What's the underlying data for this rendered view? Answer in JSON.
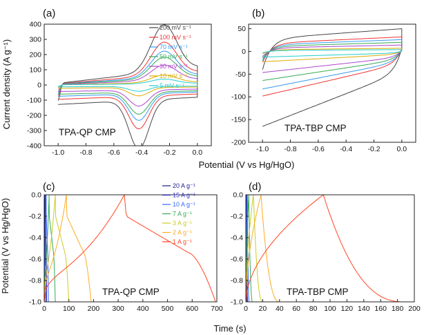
{
  "figure": {
    "shared_xlabel_top": "Potential (V vs Hg/HgO)",
    "shared_ylabel_bottom": "Potential (V vs Hg/HgO)",
    "shared_xlabel_bottom": "Time (s)"
  },
  "chart_data": [
    {
      "panel": "(a)",
      "type": "line",
      "title": "TPA-QP CMP",
      "ylabel": "Current density (A g⁻¹)",
      "xlabel": "",
      "xlim": [
        -1.1,
        0.1
      ],
      "ylim": [
        -400,
        400
      ],
      "xticks": [
        -1.0,
        -0.8,
        -0.6,
        -0.4,
        -0.2,
        0.0
      ],
      "xtick_labels": [
        "-1.0",
        "-0.8",
        "-0.6",
        "-0.4",
        "-0.2",
        "0.0"
      ],
      "yticks": [
        -400,
        -300,
        -200,
        -100,
        0,
        100,
        200,
        300,
        400
      ],
      "legend_position": "right",
      "shape": "cv_redox",
      "series": [
        {
          "name": "200 mV s⁻¹",
          "color": "#444444",
          "peak_anodic": 305,
          "peak_cathodic": -320,
          "base": 95
        },
        {
          "name": "100 mV s⁻¹",
          "color": "#ee3333",
          "peak_anodic": 215,
          "peak_cathodic": -215,
          "base": 70
        },
        {
          "name": "70 mV s⁻¹",
          "color": "#3399ee",
          "peak_anodic": 170,
          "peak_cathodic": -175,
          "base": 55
        },
        {
          "name": "50 mV s⁻¹",
          "color": "#33aa55",
          "peak_anodic": 140,
          "peak_cathodic": -145,
          "base": 45
        },
        {
          "name": "30 mV s⁻¹",
          "color": "#aa44cc",
          "peak_anodic": 100,
          "peak_cathodic": -105,
          "base": 32
        },
        {
          "name": "10 mV s⁻¹",
          "color": "#ddaa00",
          "peak_anodic": 50,
          "peak_cathodic": -55,
          "base": 16
        },
        {
          "name": "5 mV s⁻¹",
          "color": "#22cccc",
          "peak_anodic": 30,
          "peak_cathodic": -32,
          "base": 9
        }
      ]
    },
    {
      "panel": "(b)",
      "type": "line",
      "title": "TPA-TBP CMP",
      "ylabel": "",
      "xlabel": "",
      "xlim": [
        -1.1,
        0.1
      ],
      "ylim": [
        -200,
        60
      ],
      "xticks": [
        -1.0,
        -0.8,
        -0.6,
        -0.4,
        -0.2,
        0.0
      ],
      "xtick_labels": [
        "-1.0",
        "-0.8",
        "-0.6",
        "-0.4",
        "-0.2",
        "0.0"
      ],
      "yticks": [
        -200,
        -150,
        -100,
        -50,
        0,
        50
      ],
      "shape": "cv_capacitive",
      "series": [
        {
          "name": "200 mV s⁻¹",
          "color": "#444444",
          "top": 50,
          "bottom": -160
        },
        {
          "name": "100 mV s⁻¹",
          "color": "#ee3333",
          "top": 32,
          "bottom": -95
        },
        {
          "name": "70 mV s⁻¹",
          "color": "#3399ee",
          "top": 26,
          "bottom": -80
        },
        {
          "name": "50 mV s⁻¹",
          "color": "#33aa55",
          "top": 20,
          "bottom": -62
        },
        {
          "name": "30 mV s⁻¹",
          "color": "#aa44cc",
          "top": 14,
          "bottom": -45
        },
        {
          "name": "10 mV s⁻¹",
          "color": "#ddaa00",
          "top": 7,
          "bottom": -22
        },
        {
          "name": "5 mV s⁻¹",
          "color": "#22cccc",
          "top": 4,
          "bottom": -12
        }
      ]
    },
    {
      "panel": "(c)",
      "type": "line",
      "title": "TPA-QP CMP",
      "ylabel": "Potential (V vs Hg/HgO)",
      "xlabel": "",
      "xlim": [
        0,
        700
      ],
      "ylim": [
        -1.0,
        0.0
      ],
      "xticks": [
        0,
        100,
        200,
        300,
        400,
        500,
        600,
        700
      ],
      "xtick_labels": [
        "0",
        "100",
        "200",
        "300",
        "400",
        "500",
        "600",
        "700"
      ],
      "yticks": [
        -1.0,
        -0.8,
        -0.6,
        -0.4,
        -0.2,
        0.0
      ],
      "ytick_labels": [
        "-1.0",
        "-0.8",
        "-0.6",
        "-0.4",
        "-0.2",
        "0.0"
      ],
      "legend_position": "top-left",
      "shape": "gcd_qp",
      "series": [
        {
          "name": "20 A g⁻¹",
          "color": "#1a1a8c",
          "t_charge": 3,
          "t_end": 6
        },
        {
          "name": "15 A g⁻¹",
          "color": "#3333cc",
          "t_charge": 5,
          "t_end": 10
        },
        {
          "name": "10 A g⁻¹",
          "color": "#3366ff",
          "t_charge": 8,
          "t_end": 17
        },
        {
          "name": "7 A g⁻¹",
          "color": "#33aa55",
          "t_charge": 20,
          "t_end": 45
        },
        {
          "name": "3 A g⁻¹",
          "color": "#cccc22",
          "t_charge": 45,
          "t_end": 100
        },
        {
          "name": "2 A g⁻¹",
          "color": "#ffaa22",
          "t_charge": 90,
          "t_end": 190
        },
        {
          "name": "1 A g⁻¹",
          "color": "#ff4422",
          "t_charge": 325,
          "t_end": 695
        }
      ]
    },
    {
      "panel": "(d)",
      "type": "line",
      "title": "TPA-TBP CMP",
      "ylabel": "",
      "xlabel": "",
      "xlim": [
        0,
        200
      ],
      "ylim": [
        -1.0,
        0.0
      ],
      "xticks": [
        0,
        20,
        40,
        60,
        80,
        100,
        120,
        140,
        160,
        180,
        200
      ],
      "xtick_labels": [
        "0",
        "20",
        "40",
        "60",
        "80",
        "100",
        "120",
        "140",
        "160",
        "180",
        "200"
      ],
      "yticks": [
        -1.0,
        -0.8,
        -0.6,
        -0.4,
        -0.2,
        0.0
      ],
      "ytick_labels": [
        "-1.0",
        "-0.8",
        "-0.6",
        "-0.4",
        "-0.2",
        "0.0"
      ],
      "shape": "gcd_tbp",
      "series": [
        {
          "name": "20 A g⁻¹",
          "color": "#1a1a8c",
          "t_charge": 0.6,
          "t_end": 1.3
        },
        {
          "name": "15 A g⁻¹",
          "color": "#3333cc",
          "t_charge": 1.0,
          "t_end": 2.2
        },
        {
          "name": "10 A g⁻¹",
          "color": "#3366ff",
          "t_charge": 1.8,
          "t_end": 4
        },
        {
          "name": "7 A g⁻¹",
          "color": "#33aa55",
          "t_charge": 3.5,
          "t_end": 8
        },
        {
          "name": "3 A g⁻¹",
          "color": "#cccc22",
          "t_charge": 9,
          "t_end": 20
        },
        {
          "name": "2 A g⁻¹",
          "color": "#ffaa22",
          "t_charge": 18,
          "t_end": 40
        },
        {
          "name": "1 A g⁻¹",
          "color": "#ff4422",
          "t_charge": 92,
          "t_end": 188
        }
      ]
    }
  ]
}
